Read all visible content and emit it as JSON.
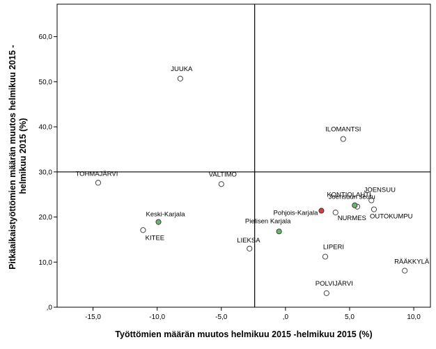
{
  "chart_data": {
    "type": "scatter",
    "xlabel": "Työttömien määrän muutos helmikuu 2015 -helmikuu 2015 (%)",
    "ylabel_lines": [
      "Pitkäaikaistyöttömien määrän muutos helmikuu 2015 -",
      "helmikuu 2015 (%)"
    ],
    "xlim": [
      -17.8,
      11.3
    ],
    "ylim": [
      0,
      67.2
    ],
    "xticks": [
      -15,
      -10,
      -5,
      0,
      5,
      10
    ],
    "xtick_labels": [
      "-15,0",
      "-10,0",
      "-5,0",
      ",0",
      "5,0",
      "10,0"
    ],
    "yticks": [
      0,
      10,
      20,
      30,
      40,
      50,
      60
    ],
    "ytick_labels": [
      ",0",
      "10,0",
      "20,0",
      "30,0",
      "40,0",
      "50,0",
      "60,0"
    ],
    "reference_lines": {
      "x": -2.4,
      "y": 30
    },
    "grid": false,
    "colors": {
      "default": "#ffffff",
      "region": "#6ab56a",
      "subregion": "#d93a3a"
    },
    "points": [
      {
        "label": "JUUKA",
        "x": -8.2,
        "y": 50.7,
        "color": "default"
      },
      {
        "label": "ILOMANTSI",
        "x": 4.5,
        "y": 37.3,
        "color": "default"
      },
      {
        "label": "TOHMAJÄRVI",
        "x": -14.6,
        "y": 27.6,
        "color": "default"
      },
      {
        "label": "VALTIMO",
        "x": -5.0,
        "y": 27.3,
        "color": "default"
      },
      {
        "label": "KONTIOLAHTI",
        "x": 5.6,
        "y": 22.3,
        "color": "default"
      },
      {
        "label": "JOENSUU",
        "x": 6.7,
        "y": 23.7,
        "color": "default"
      },
      {
        "label": "OUTOKUMPU",
        "x": 6.9,
        "y": 21.7,
        "color": "default"
      },
      {
        "label": "NURMES",
        "x": 3.9,
        "y": 21.0,
        "color": "default"
      },
      {
        "label": "Joensuun seutu",
        "x": 5.4,
        "y": 22.6,
        "color": "region"
      },
      {
        "label": "Pohjois-Karjala",
        "x": 2.8,
        "y": 21.4,
        "color": "subregion"
      },
      {
        "label": "Keski-Karjala",
        "x": -9.9,
        "y": 18.9,
        "color": "region"
      },
      {
        "label": "KITEE",
        "x": -11.1,
        "y": 17.1,
        "color": "default"
      },
      {
        "label": "Pielisen Karjala",
        "x": -0.5,
        "y": 16.8,
        "color": "region"
      },
      {
        "label": "LIEKSA",
        "x": -2.8,
        "y": 13.0,
        "color": "default"
      },
      {
        "label": "LIPERI",
        "x": 3.1,
        "y": 11.2,
        "color": "default"
      },
      {
        "label": "RÄÄKKYLÄ",
        "x": 9.3,
        "y": 8.1,
        "color": "default"
      },
      {
        "label": "POLVIJÄRVI",
        "x": 3.2,
        "y": 3.1,
        "color": "default"
      }
    ]
  }
}
